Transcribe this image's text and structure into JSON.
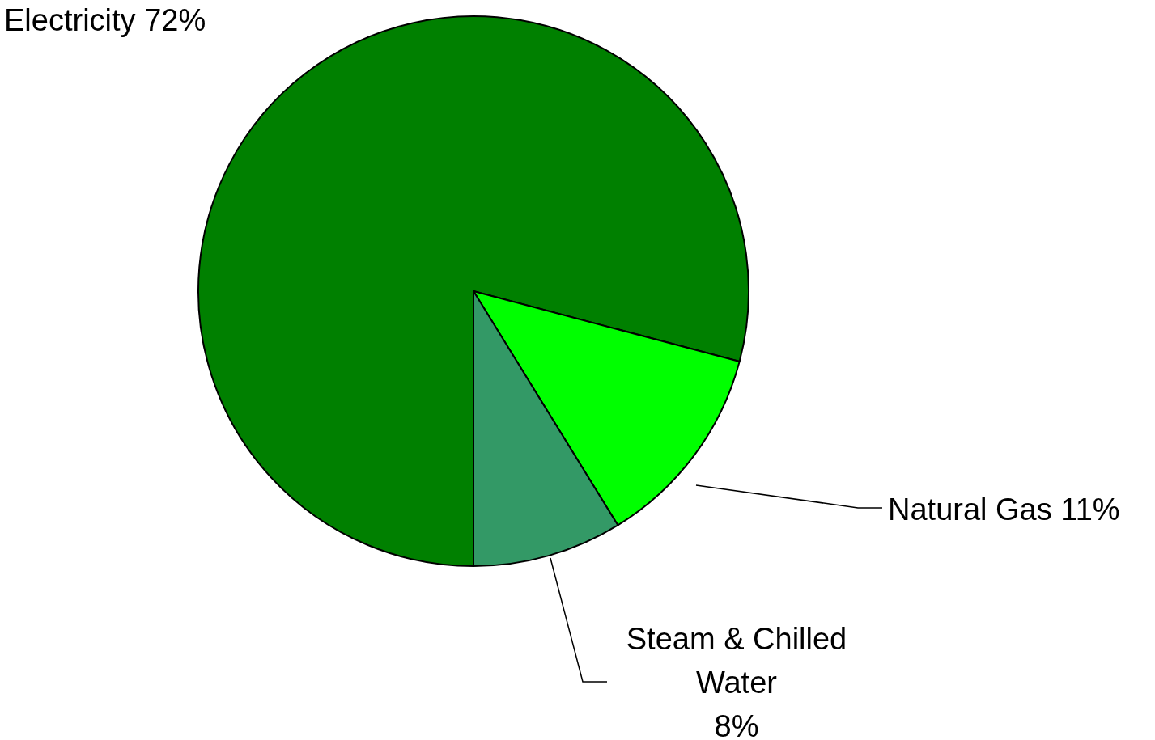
{
  "chart_data": {
    "type": "pie",
    "categories": [
      "Electricity",
      "Natural Gas",
      "Steam & Chilled Water"
    ],
    "values": [
      72,
      11,
      8
    ],
    "colors": [
      "#008000",
      "#00ff00",
      "#339966"
    ],
    "value_labels": [
      "72%",
      "11%",
      "8%"
    ]
  }
}
